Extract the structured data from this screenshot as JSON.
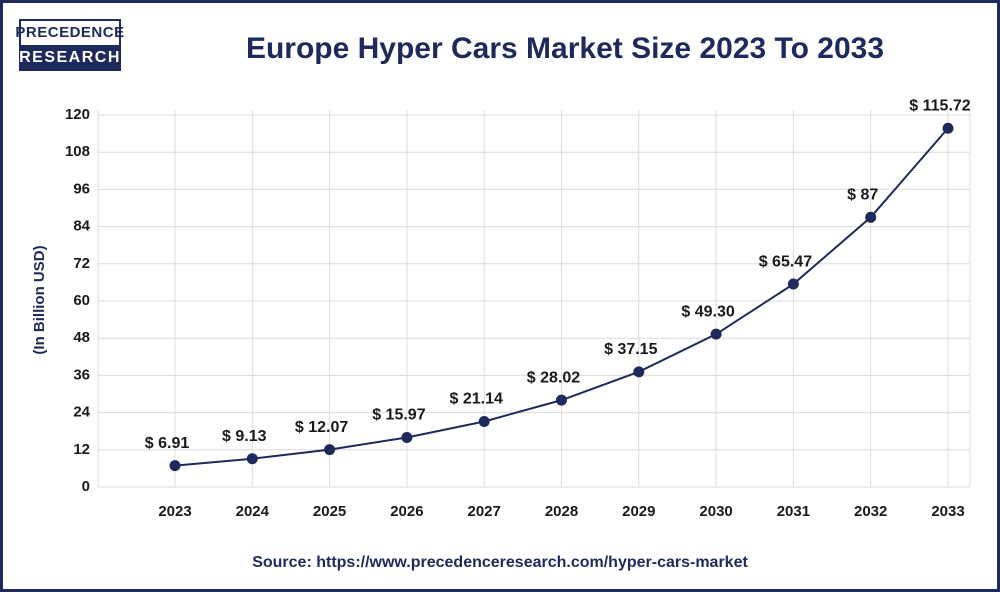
{
  "logo_lines": [
    "PRECEDENCE",
    "RESEARCH"
  ],
  "chart_data": {
    "type": "line",
    "title": "Europe Hyper Cars Market Size 2023 To 2033",
    "y_label": "(In Billion USD)",
    "source": "Source: https://www.precedenceresearch.com/hyper-cars-market",
    "categories": [
      "2023",
      "2024",
      "2025",
      "2026",
      "2027",
      "2028",
      "2029",
      "2030",
      "2031",
      "2032",
      "2033"
    ],
    "values": [
      6.91,
      9.13,
      12.07,
      15.97,
      21.14,
      28.02,
      37.15,
      49.3,
      65.47,
      87,
      115.72
    ],
    "value_labels": [
      "$ 6.91",
      "$ 9.13",
      "$ 12.07",
      "$ 15.97",
      "$ 21.14",
      "$ 28.02",
      "$ 37.15",
      "$ 49.30",
      "$ 65.47",
      "$ 87",
      "$ 115.72"
    ],
    "color": "#1f2a5c",
    "ylim": [
      0,
      120
    ],
    "yticks": [
      0,
      12,
      24,
      36,
      48,
      60,
      72,
      84,
      96,
      108,
      120
    ],
    "grid": true
  }
}
